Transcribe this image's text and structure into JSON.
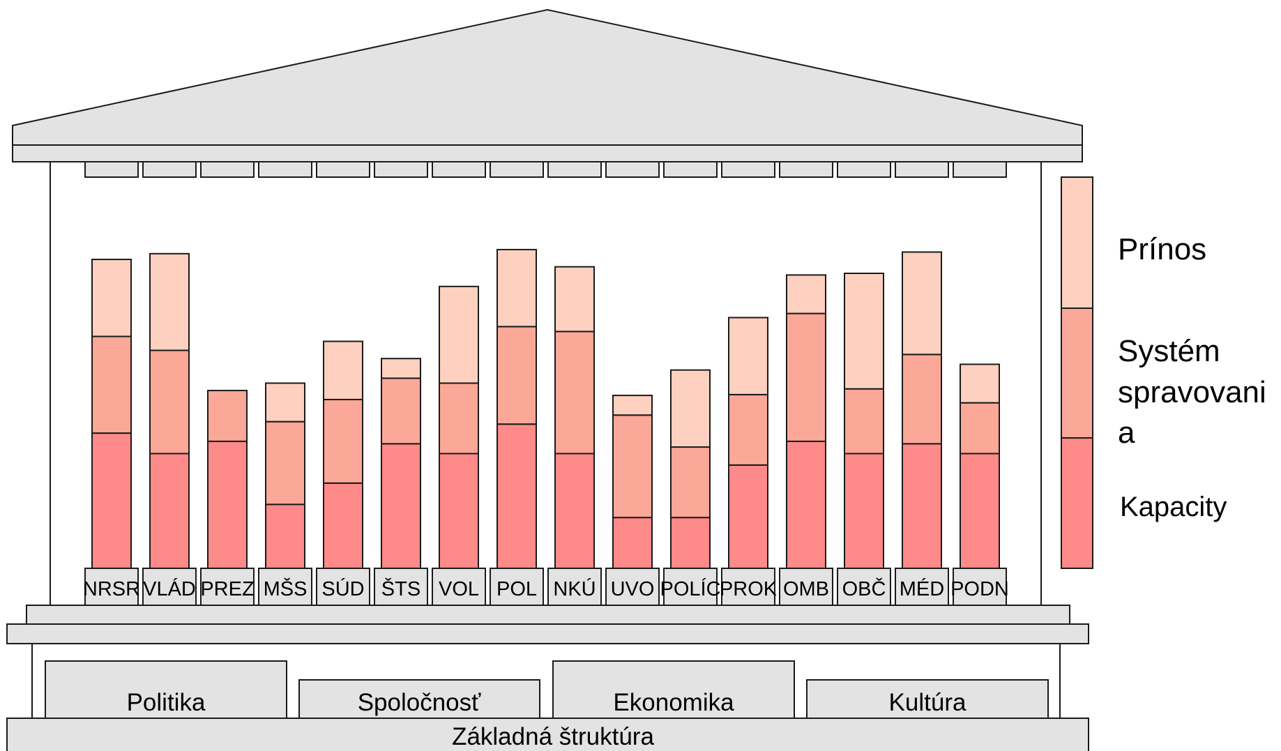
{
  "chart_data": {
    "type": "bar",
    "stacked": true,
    "categories": [
      "NRSR",
      "VLÁD",
      "PREZ",
      "MŠS",
      "SÚD",
      "ŠTS",
      "VOL",
      "POL",
      "NKÚ",
      "UVO",
      "POLÍC",
      "PROK",
      "OMB",
      "OBČ",
      "MÉD",
      "PODN"
    ],
    "series": [
      {
        "name": "Kapacity",
        "values": [
          165,
          140,
          155,
          78,
          104,
          152,
          140,
          176,
          140,
          62,
          62,
          126,
          155,
          140,
          152,
          140
        ]
      },
      {
        "name": "Systém spravovania",
        "values": [
          118,
          126,
          62,
          101,
          102,
          80,
          86,
          119,
          149,
          125,
          86,
          86,
          156,
          79,
          109,
          62
        ]
      },
      {
        "name": "Prínos",
        "values": [
          94,
          118,
          0,
          47,
          71,
          24,
          118,
          94,
          79,
          24,
          94,
          94,
          47,
          141,
          125,
          47
        ]
      }
    ],
    "ylim": [
      0,
      400
    ],
    "legend_position": "right",
    "colors": {
      "Kapacity": "#ff8a8a",
      "Systém spravovania": "#fca899",
      "Prínos": "#fed0bf"
    }
  },
  "legend": {
    "prinos": "Prínos",
    "system_line1": "Systém",
    "system_line2": "spravovani",
    "system_line3": "a",
    "kapacity": "Kapacity"
  },
  "foundations": {
    "pillars": [
      "Politika",
      "Spoločnosť",
      "Ekonomika",
      "Kultúra"
    ],
    "base": "Základná štruktúra"
  },
  "colors": {
    "structure_fill": "#e3e3e3",
    "structure_stroke": "#1a1a1a"
  }
}
